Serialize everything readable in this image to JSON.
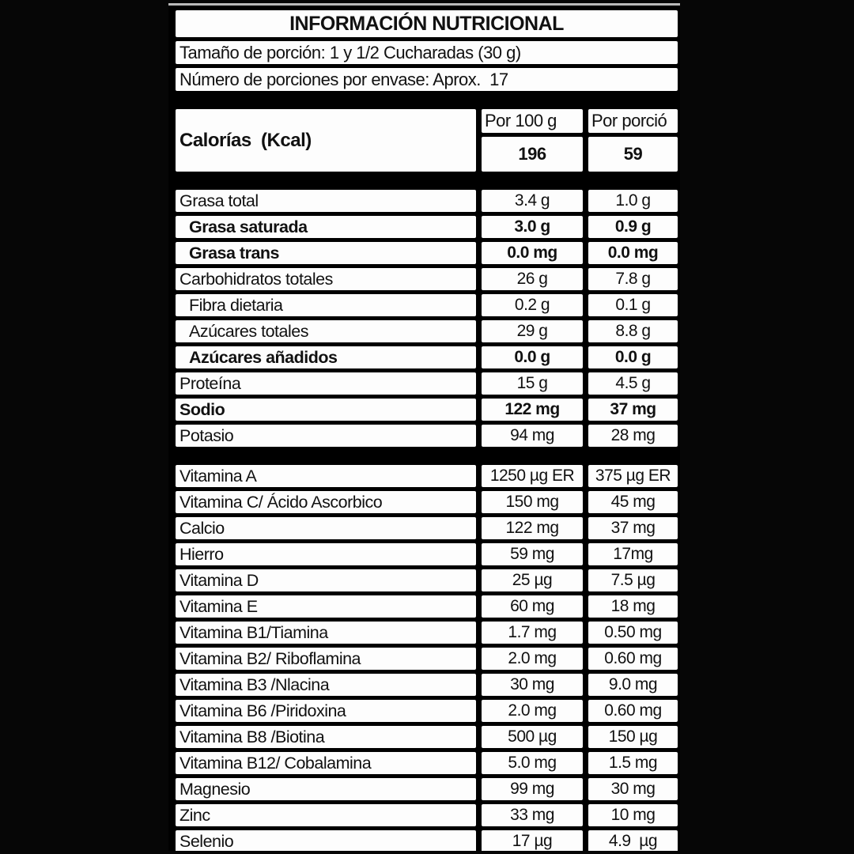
{
  "title": "INFORMACIÓN NUTRICIONAL",
  "serving": {
    "size": "Tamaño de porción: 1 y 1/2 Cucharadas (30 g)",
    "count": "Número de porciones por envase: Aprox.  17"
  },
  "calories": {
    "label": "Calorías  (Kcal)",
    "per100_header": "Por 100 g",
    "serving_header": "Por porció",
    "per100_value": "196",
    "serving_value": "59"
  },
  "colors": {
    "background": "#000000",
    "cell": "#fdfdfd",
    "text": "#111111"
  },
  "macronutrients": [
    {
      "label": "Grasa total",
      "per_100g": "3.4 g",
      "per_serving": "1.0 g",
      "bold": false,
      "indent": false
    },
    {
      "label": "Grasa saturada",
      "per_100g": "3.0 g",
      "per_serving": "0.9 g",
      "bold": true,
      "indent": true
    },
    {
      "label": "Grasa trans",
      "per_100g": "0.0 mg",
      "per_serving": "0.0 mg",
      "bold": true,
      "indent": true
    },
    {
      "label": "Carbohidratos totales",
      "per_100g": "26 g",
      "per_serving": "7.8 g",
      "bold": false,
      "indent": false
    },
    {
      "label": "Fibra dietaria",
      "per_100g": "0.2 g",
      "per_serving": "0.1 g",
      "bold": false,
      "indent": true
    },
    {
      "label": "Azúcares totales",
      "per_100g": "29 g",
      "per_serving": "8.8 g",
      "bold": false,
      "indent": true
    },
    {
      "label": "Azúcares añadidos",
      "per_100g": "0.0 g",
      "per_serving": "0.0 g",
      "bold": true,
      "indent": true
    },
    {
      "label": "Proteína",
      "per_100g": "15 g",
      "per_serving": "4.5 g",
      "bold": false,
      "indent": false
    },
    {
      "label": "Sodio",
      "per_100g": "122 mg",
      "per_serving": "37 mg",
      "bold": true,
      "indent": false
    },
    {
      "label": "Potasio",
      "per_100g": "94 mg",
      "per_serving": "28 mg",
      "bold": false,
      "indent": false
    }
  ],
  "micronutrients": [
    {
      "label": "Vitamina A",
      "per_100g": "1250 µg ER",
      "per_serving": "375 µg ER",
      "bold": false,
      "indent": false
    },
    {
      "label": "Vitamina C/ Ácido Ascorbico",
      "per_100g": "150 mg",
      "per_serving": "45 mg",
      "bold": false,
      "indent": false
    },
    {
      "label": "Calcio",
      "per_100g": "122 mg",
      "per_serving": "37 mg",
      "bold": false,
      "indent": false
    },
    {
      "label": "Hierro",
      "per_100g": "59 mg",
      "per_serving": "17mg",
      "bold": false,
      "indent": false
    },
    {
      "label": "Vitamina D",
      "per_100g": "25 µg",
      "per_serving": "7.5 µg",
      "bold": false,
      "indent": false
    },
    {
      "label": "Vitamina E",
      "per_100g": "60 mg",
      "per_serving": "18 mg",
      "bold": false,
      "indent": false
    },
    {
      "label": "Vitamina B1/Tiamina",
      "per_100g": "1.7 mg",
      "per_serving": "0.50 mg",
      "bold": false,
      "indent": false
    },
    {
      "label": "Vitamina B2/ Riboflamina",
      "per_100g": "2.0 mg",
      "per_serving": "0.60 mg",
      "bold": false,
      "indent": false
    },
    {
      "label": "Vitamina B3 /Nlacina",
      "per_100g": "30 mg",
      "per_serving": "9.0 mg",
      "bold": false,
      "indent": false
    },
    {
      "label": "Vitamina B6 /Piridoxina",
      "per_100g": "2.0 mg",
      "per_serving": "0.60 mg",
      "bold": false,
      "indent": false
    },
    {
      "label": "Vitamina B8 /Biotina",
      "per_100g": "500 µg",
      "per_serving": "150 µg",
      "bold": false,
      "indent": false
    },
    {
      "label": "Vitamina B12/ Cobalamina",
      "per_100g": "5.0 mg",
      "per_serving": "1.5 mg",
      "bold": false,
      "indent": false
    },
    {
      "label": "Magnesio",
      "per_100g": "99 mg",
      "per_serving": "30 mg",
      "bold": false,
      "indent": false
    },
    {
      "label": "Zinc",
      "per_100g": "33 mg",
      "per_serving": "10 mg",
      "bold": false,
      "indent": false
    },
    {
      "label": "Selenio",
      "per_100g": "17 µg",
      "per_serving": "4.9  µg",
      "bold": false,
      "indent": false
    }
  ]
}
